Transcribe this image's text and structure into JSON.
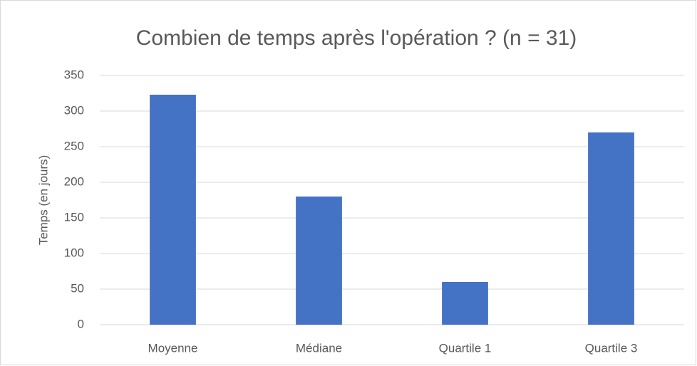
{
  "chart_data": {
    "type": "bar",
    "title": "Combien de temps après l'opération ? (n = 31)",
    "y_label": "Temps (en jours)",
    "categories": [
      "Moyenne",
      "Médiane",
      "Quartile 1",
      "Quartile 3"
    ],
    "values": [
      323,
      180,
      60,
      270
    ],
    "color": "#4472c4",
    "ylim": [
      0,
      350
    ],
    "yticks": [
      0,
      50,
      100,
      150,
      200,
      250,
      300,
      350
    ],
    "grid": true
  }
}
